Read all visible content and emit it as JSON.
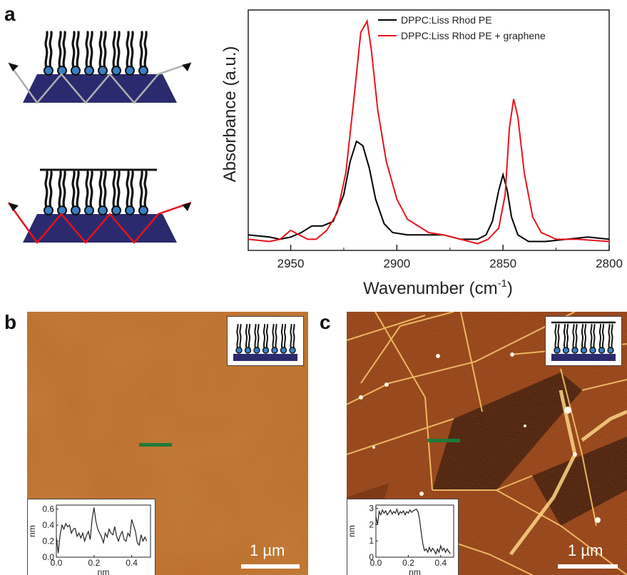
{
  "panels": {
    "a": {
      "letter": "a"
    },
    "b": {
      "letter": "b",
      "scale_label": "1 µm"
    },
    "c": {
      "letter": "c",
      "scale_label": "1 µm"
    }
  },
  "colors": {
    "series_black": "#000000",
    "series_red": "#e8131b",
    "substrate": "#2b2a6e",
    "headgroup": "#3a7fc4",
    "beam_gray": "#b0b0b0",
    "beam_red": "#e8131b",
    "afm_b": "#b05a1e",
    "afm_c": "#7a2a0e",
    "marker_green": "#1f7a3b"
  },
  "chart_data": [
    {
      "type": "line",
      "xlabel": "Wavenumber (cm",
      "xlabel_sup": "-1",
      "xlabel_close": ")",
      "ylabel": "Absorbance (a.u.)",
      "xlim": [
        2970,
        2800
      ],
      "ylim": [
        0,
        1.0
      ],
      "xticks": [
        2950,
        2900,
        2850,
        2800
      ],
      "legend_position": "top-right",
      "series": [
        {
          "name": "DPPC:Liss Rhod PE",
          "color": "#000000",
          "points": [
            [
              2970,
              0.02
            ],
            [
              2960,
              0.01
            ],
            [
              2955,
              0.0
            ],
            [
              2950,
              0.01
            ],
            [
              2945,
              0.03
            ],
            [
              2940,
              0.06
            ],
            [
              2935,
              0.06
            ],
            [
              2930,
              0.08
            ],
            [
              2925,
              0.2
            ],
            [
              2922,
              0.35
            ],
            [
              2919,
              0.44
            ],
            [
              2916,
              0.42
            ],
            [
              2913,
              0.32
            ],
            [
              2910,
              0.18
            ],
            [
              2906,
              0.07
            ],
            [
              2902,
              0.03
            ],
            [
              2895,
              0.02
            ],
            [
              2885,
              0.02
            ],
            [
              2878,
              0.02
            ],
            [
              2870,
              0.0
            ],
            [
              2862,
              0.0
            ],
            [
              2858,
              0.02
            ],
            [
              2855,
              0.08
            ],
            [
              2852,
              0.22
            ],
            [
              2850,
              0.29
            ],
            [
              2848,
              0.22
            ],
            [
              2846,
              0.1
            ],
            [
              2843,
              0.02
            ],
            [
              2838,
              -0.01
            ],
            [
              2830,
              -0.01
            ],
            [
              2820,
              0.0
            ],
            [
              2810,
              0.01
            ],
            [
              2800,
              0.0
            ]
          ]
        },
        {
          "name": "DPPC:Liss Rhod PE + graphene",
          "color": "#e8131b",
          "points": [
            [
              2970,
              0.0
            ],
            [
              2960,
              -0.01
            ],
            [
              2955,
              0.0
            ],
            [
              2950,
              0.04
            ],
            [
              2946,
              0.02
            ],
            [
              2942,
              0.0
            ],
            [
              2938,
              0.0
            ],
            [
              2933,
              0.04
            ],
            [
              2928,
              0.12
            ],
            [
              2924,
              0.3
            ],
            [
              2920,
              0.65
            ],
            [
              2917,
              0.93
            ],
            [
              2914,
              0.98
            ],
            [
              2912,
              0.85
            ],
            [
              2909,
              0.58
            ],
            [
              2905,
              0.35
            ],
            [
              2900,
              0.18
            ],
            [
              2895,
              0.09
            ],
            [
              2885,
              0.03
            ],
            [
              2878,
              0.02
            ],
            [
              2870,
              0.0
            ],
            [
              2862,
              -0.02
            ],
            [
              2857,
              0.0
            ],
            [
              2852,
              0.05
            ],
            [
              2849,
              0.2
            ],
            [
              2847,
              0.5
            ],
            [
              2845,
              0.63
            ],
            [
              2843,
              0.55
            ],
            [
              2840,
              0.3
            ],
            [
              2836,
              0.1
            ],
            [
              2832,
              0.03
            ],
            [
              2825,
              0.0
            ],
            [
              2815,
              0.0
            ],
            [
              2800,
              -0.01
            ]
          ]
        }
      ]
    },
    {
      "type": "line",
      "xlabel": "nm",
      "ylabel": "nm",
      "xlim": [
        0,
        0.5
      ],
      "ylim": [
        0,
        0.65
      ],
      "xticks": [
        "0.0",
        "0.2",
        "0.4"
      ],
      "yticks": [
        "0.0",
        "0.2",
        "0.4",
        "0.6"
      ],
      "series": [
        {
          "color": "#222222",
          "points": [
            [
              0.0,
              0.25
            ],
            [
              0.01,
              0.05
            ],
            [
              0.02,
              0.28
            ],
            [
              0.03,
              0.4
            ],
            [
              0.04,
              0.35
            ],
            [
              0.05,
              0.42
            ],
            [
              0.06,
              0.38
            ],
            [
              0.07,
              0.4
            ],
            [
              0.08,
              0.3
            ],
            [
              0.09,
              0.35
            ],
            [
              0.1,
              0.36
            ],
            [
              0.11,
              0.26
            ],
            [
              0.12,
              0.3
            ],
            [
              0.13,
              0.24
            ],
            [
              0.14,
              0.3
            ],
            [
              0.15,
              0.2
            ],
            [
              0.16,
              0.27
            ],
            [
              0.17,
              0.32
            ],
            [
              0.18,
              0.22
            ],
            [
              0.19,
              0.48
            ],
            [
              0.2,
              0.62
            ],
            [
              0.21,
              0.45
            ],
            [
              0.22,
              0.35
            ],
            [
              0.23,
              0.3
            ],
            [
              0.24,
              0.25
            ],
            [
              0.25,
              0.18
            ],
            [
              0.26,
              0.3
            ],
            [
              0.27,
              0.25
            ],
            [
              0.28,
              0.35
            ],
            [
              0.29,
              0.3
            ],
            [
              0.3,
              0.28
            ],
            [
              0.31,
              0.38
            ],
            [
              0.32,
              0.26
            ],
            [
              0.33,
              0.2
            ],
            [
              0.34,
              0.28
            ],
            [
              0.35,
              0.32
            ],
            [
              0.36,
              0.22
            ],
            [
              0.37,
              0.2
            ],
            [
              0.38,
              0.3
            ],
            [
              0.39,
              0.26
            ],
            [
              0.4,
              0.47
            ],
            [
              0.41,
              0.4
            ],
            [
              0.42,
              0.32
            ],
            [
              0.43,
              0.18
            ],
            [
              0.44,
              0.15
            ],
            [
              0.45,
              0.28
            ],
            [
              0.46,
              0.2
            ],
            [
              0.47,
              0.25
            ],
            [
              0.48,
              0.2
            ]
          ]
        }
      ]
    },
    {
      "type": "line",
      "xlabel": "nm",
      "ylabel": "nm",
      "xlim": [
        0,
        0.48
      ],
      "ylim": [
        0,
        3.2
      ],
      "xticks": [
        "0.0",
        "0.2",
        "0.4"
      ],
      "yticks": [
        "0",
        "1",
        "2",
        "3"
      ],
      "series": [
        {
          "color": "#222222",
          "points": [
            [
              0.0,
              2.5
            ],
            [
              0.01,
              2.0
            ],
            [
              0.02,
              2.8
            ],
            [
              0.03,
              2.6
            ],
            [
              0.04,
              2.9
            ],
            [
              0.05,
              2.7
            ],
            [
              0.06,
              2.85
            ],
            [
              0.07,
              2.6
            ],
            [
              0.08,
              2.75
            ],
            [
              0.09,
              2.9
            ],
            [
              0.1,
              2.65
            ],
            [
              0.11,
              2.8
            ],
            [
              0.12,
              2.7
            ],
            [
              0.13,
              2.95
            ],
            [
              0.14,
              2.6
            ],
            [
              0.15,
              2.8
            ],
            [
              0.16,
              2.7
            ],
            [
              0.17,
              2.85
            ],
            [
              0.18,
              2.6
            ],
            [
              0.19,
              2.8
            ],
            [
              0.2,
              2.7
            ],
            [
              0.21,
              2.9
            ],
            [
              0.22,
              2.75
            ],
            [
              0.23,
              2.85
            ],
            [
              0.24,
              2.9
            ],
            [
              0.25,
              2.95
            ],
            [
              0.26,
              2.8
            ],
            [
              0.27,
              2.3
            ],
            [
              0.28,
              1.5
            ],
            [
              0.29,
              0.8
            ],
            [
              0.3,
              0.4
            ],
            [
              0.31,
              0.5
            ],
            [
              0.32,
              0.3
            ],
            [
              0.33,
              0.6
            ],
            [
              0.34,
              0.35
            ],
            [
              0.35,
              0.55
            ],
            [
              0.36,
              0.4
            ],
            [
              0.37,
              0.2
            ],
            [
              0.38,
              0.5
            ],
            [
              0.39,
              0.3
            ],
            [
              0.4,
              0.7
            ],
            [
              0.41,
              0.4
            ],
            [
              0.42,
              0.55
            ],
            [
              0.43,
              0.3
            ],
            [
              0.44,
              0.5
            ],
            [
              0.45,
              0.35
            ],
            [
              0.46,
              0.2
            ]
          ]
        }
      ]
    }
  ]
}
